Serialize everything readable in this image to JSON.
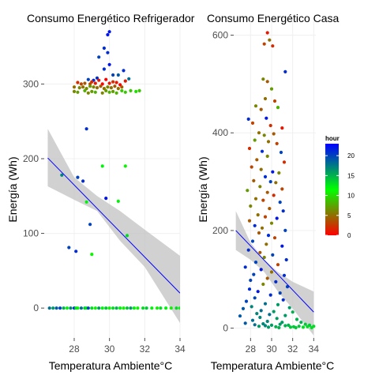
{
  "legend": {
    "title": "hour",
    "ticks": [
      0,
      5,
      10,
      15,
      20
    ],
    "range": [
      0,
      23
    ],
    "colors": [
      "#ff0000",
      "#00ff00",
      "#0000ff"
    ]
  },
  "colors": {
    "point_cold": "#ff0000",
    "point_mid": "#00ff00",
    "point_hot": "#0000ff",
    "trend_line": "#0000ff",
    "confidence_band": "#bdbdbd",
    "grid": "#f0f0f0"
  },
  "chart_data": [
    {
      "type": "scatter",
      "title": "Consumo Energético Refrigerador",
      "xlabel": "Temperatura Ambiente°C",
      "ylabel": "Energía (Wh)",
      "xlim": [
        26.3,
        34.0
      ],
      "ylim": [
        -40,
        385
      ],
      "xticks": [
        28,
        30,
        32,
        34
      ],
      "yticks": [
        0,
        100,
        200,
        300
      ],
      "color_by": "hour",
      "trend": {
        "method": "linear",
        "x": [
          26.5,
          34.0
        ],
        "y": [
          201,
          20
        ],
        "se_band": [
          [
            26.5,
            163,
            240
          ],
          [
            28.0,
            145,
            175
          ],
          [
            29.3,
            130,
            150
          ],
          [
            30.6,
            90,
            130
          ],
          [
            32.0,
            55,
            105
          ],
          [
            34.0,
            -20,
            70
          ]
        ]
      },
      "points": [
        [
          29.9,
          366,
          22
        ],
        [
          30.0,
          370,
          22
        ],
        [
          29.7,
          348,
          21
        ],
        [
          29.9,
          342,
          21
        ],
        [
          29.4,
          336,
          20
        ],
        [
          30.0,
          326,
          22
        ],
        [
          29.7,
          320,
          21
        ],
        [
          30.2,
          312,
          20
        ],
        [
          29.3,
          308,
          21
        ],
        [
          28.8,
          306,
          20
        ],
        [
          29.1,
          305,
          21
        ],
        [
          30.5,
          312,
          19
        ],
        [
          30.8,
          318,
          21
        ],
        [
          31.1,
          307,
          18
        ],
        [
          28.2,
          302,
          2
        ],
        [
          28.4,
          300,
          3
        ],
        [
          28.6,
          301,
          4
        ],
        [
          28.9,
          300,
          3
        ],
        [
          29.0,
          303,
          2
        ],
        [
          29.2,
          301,
          1
        ],
        [
          29.4,
          305,
          1
        ],
        [
          29.6,
          300,
          0
        ],
        [
          29.8,
          306,
          0
        ],
        [
          30.0,
          301,
          1
        ],
        [
          30.2,
          303,
          2
        ],
        [
          30.4,
          302,
          1
        ],
        [
          30.6,
          299,
          0
        ],
        [
          30.9,
          304,
          1
        ],
        [
          28.0,
          296,
          5
        ],
        [
          28.3,
          295,
          6
        ],
        [
          28.5,
          296,
          5
        ],
        [
          28.7,
          294,
          6
        ],
        [
          28.9,
          297,
          7
        ],
        [
          29.1,
          296,
          6
        ],
        [
          29.3,
          295,
          5
        ],
        [
          29.5,
          297,
          4
        ],
        [
          29.7,
          294,
          5
        ],
        [
          29.9,
          296,
          6
        ],
        [
          30.1,
          295,
          5
        ],
        [
          30.3,
          297,
          4
        ],
        [
          30.5,
          294,
          5
        ],
        [
          30.7,
          296,
          4
        ],
        [
          28.0,
          290,
          6
        ],
        [
          28.2,
          289,
          7
        ],
        [
          28.6,
          291,
          8
        ],
        [
          28.8,
          288,
          6
        ],
        [
          29.0,
          290,
          7
        ],
        [
          29.2,
          289,
          8
        ],
        [
          29.6,
          288,
          6
        ],
        [
          29.8,
          291,
          7
        ],
        [
          30.0,
          289,
          8
        ],
        [
          30.2,
          290,
          7
        ],
        [
          30.4,
          288,
          8
        ],
        [
          30.7,
          291,
          9
        ],
        [
          30.9,
          289,
          9
        ],
        [
          31.2,
          291,
          9
        ],
        [
          31.5,
          290,
          10
        ],
        [
          31.7,
          291,
          9
        ],
        [
          28.7,
          240,
          21
        ],
        [
          29.6,
          190,
          12
        ],
        [
          30.9,
          190,
          11
        ],
        [
          28.5,
          170,
          21
        ],
        [
          28.2,
          175,
          20
        ],
        [
          27.3,
          178,
          17
        ],
        [
          29.8,
          147,
          22
        ],
        [
          30.5,
          143,
          12
        ],
        [
          28.7,
          142,
          12
        ],
        [
          28.9,
          112,
          20
        ],
        [
          31.0,
          97,
          13
        ],
        [
          27.7,
          81,
          20
        ],
        [
          28.1,
          76,
          21
        ],
        [
          29.0,
          72,
          11
        ],
        [
          26.6,
          0,
          18
        ],
        [
          26.8,
          0,
          16
        ],
        [
          27.0,
          0,
          19
        ],
        [
          27.2,
          0,
          20
        ],
        [
          27.4,
          0,
          15
        ],
        [
          27.6,
          0,
          12
        ],
        [
          27.8,
          0,
          17
        ],
        [
          28.0,
          0,
          21
        ],
        [
          28.1,
          0,
          13
        ],
        [
          28.2,
          0,
          11
        ],
        [
          28.4,
          0,
          18
        ],
        [
          28.6,
          0,
          14
        ],
        [
          28.7,
          0,
          12
        ],
        [
          28.8,
          0,
          20
        ],
        [
          29.0,
          0,
          13
        ],
        [
          29.2,
          0,
          11
        ],
        [
          29.4,
          0,
          16
        ],
        [
          29.6,
          0,
          12
        ],
        [
          29.8,
          0,
          14
        ],
        [
          30.0,
          0,
          11
        ],
        [
          30.2,
          0,
          13
        ],
        [
          30.4,
          0,
          15
        ],
        [
          30.6,
          0,
          12
        ],
        [
          30.8,
          0,
          11
        ],
        [
          31.0,
          0,
          14
        ],
        [
          31.2,
          0,
          16
        ],
        [
          31.4,
          0,
          12
        ],
        [
          31.6,
          0,
          11
        ],
        [
          31.9,
          0,
          13
        ],
        [
          32.1,
          0,
          14
        ],
        [
          32.4,
          0,
          12
        ],
        [
          32.7,
          0,
          11
        ],
        [
          32.9,
          0,
          13
        ],
        [
          33.2,
          0,
          12
        ],
        [
          33.5,
          0,
          11
        ],
        [
          33.8,
          0,
          13
        ],
        [
          34.0,
          0,
          12
        ]
      ]
    },
    {
      "type": "scatter",
      "title": "Consumo Energético Casa",
      "xlabel": "Temperatura Ambiente°C",
      "ylabel": "Energía (Wh)",
      "xlim": [
        26.4,
        34.2
      ],
      "ylim": [
        -20,
        630
      ],
      "xticks": [
        28,
        30,
        32,
        34
      ],
      "yticks": [
        0,
        200,
        400,
        600
      ],
      "color_by": "hour",
      "trend": {
        "method": "linear",
        "x": [
          26.6,
          34.0
        ],
        "y": [
          200,
          33
        ],
        "se_band": [
          [
            26.6,
            160,
            240
          ],
          [
            28.0,
            140,
            175
          ],
          [
            29.3,
            115,
            140
          ],
          [
            30.6,
            75,
            115
          ],
          [
            32.0,
            40,
            95
          ],
          [
            34.0,
            -15,
            75
          ]
        ]
      },
      "points": [
        [
          29.6,
          605,
          1
        ],
        [
          29.3,
          582,
          3
        ],
        [
          29.8,
          590,
          5
        ],
        [
          30.1,
          578,
          2
        ],
        [
          31.3,
          525,
          21
        ],
        [
          29.2,
          510,
          6
        ],
        [
          29.6,
          505,
          4
        ],
        [
          30.0,
          490,
          7
        ],
        [
          29.4,
          470,
          5
        ],
        [
          30.3,
          465,
          3
        ],
        [
          28.5,
          455,
          6
        ],
        [
          29.0,
          448,
          4
        ],
        [
          30.6,
          452,
          8
        ],
        [
          27.8,
          428,
          21
        ],
        [
          29.5,
          430,
          22
        ],
        [
          28.2,
          420,
          3
        ],
        [
          29.9,
          415,
          2
        ],
        [
          31.0,
          410,
          1
        ],
        [
          28.8,
          400,
          5
        ],
        [
          29.3,
          395,
          6
        ],
        [
          30.2,
          398,
          4
        ],
        [
          28.4,
          385,
          7
        ],
        [
          29.7,
          382,
          5
        ],
        [
          30.5,
          378,
          3
        ],
        [
          27.9,
          368,
          2
        ],
        [
          29.1,
          362,
          21
        ],
        [
          30.9,
          360,
          20
        ],
        [
          29.6,
          352,
          6
        ],
        [
          28.6,
          345,
          4
        ],
        [
          31.2,
          340,
          2
        ],
        [
          28.1,
          330,
          3
        ],
        [
          29.0,
          325,
          5
        ],
        [
          30.1,
          320,
          22
        ],
        [
          30.7,
          318,
          6
        ],
        [
          29.4,
          310,
          21
        ],
        [
          28.3,
          302,
          4
        ],
        [
          29.9,
          300,
          20
        ],
        [
          30.4,
          298,
          5
        ],
        [
          28.9,
          290,
          6
        ],
        [
          31.0,
          285,
          3
        ],
        [
          27.7,
          282,
          7
        ],
        [
          29.6,
          278,
          4
        ],
        [
          30.2,
          272,
          2
        ],
        [
          28.5,
          265,
          5
        ],
        [
          29.2,
          262,
          3
        ],
        [
          30.8,
          258,
          20
        ],
        [
          28.0,
          250,
          6
        ],
        [
          29.8,
          245,
          4
        ],
        [
          31.1,
          240,
          21
        ],
        [
          28.7,
          232,
          5
        ],
        [
          29.4,
          228,
          3
        ],
        [
          30.5,
          225,
          22
        ],
        [
          27.9,
          220,
          4
        ],
        [
          30.0,
          215,
          6
        ],
        [
          28.4,
          210,
          21
        ],
        [
          29.1,
          205,
          5
        ],
        [
          31.3,
          200,
          20
        ],
        [
          28.8,
          195,
          4
        ],
        [
          29.7,
          190,
          21
        ],
        [
          30.3,
          185,
          3
        ],
        [
          28.2,
          178,
          20
        ],
        [
          29.5,
          172,
          5
        ],
        [
          31.0,
          168,
          22
        ],
        [
          27.8,
          160,
          21
        ],
        [
          28.9,
          155,
          4
        ],
        [
          30.1,
          150,
          20
        ],
        [
          29.3,
          145,
          6
        ],
        [
          31.4,
          140,
          21
        ],
        [
          28.5,
          135,
          20
        ],
        [
          30.6,
          130,
          3
        ],
        [
          27.5,
          125,
          21
        ],
        [
          29.0,
          120,
          22
        ],
        [
          30.0,
          115,
          5
        ],
        [
          28.3,
          110,
          20
        ],
        [
          31.2,
          108,
          21
        ],
        [
          29.6,
          102,
          4
        ],
        [
          28.0,
          98,
          20
        ],
        [
          30.4,
          95,
          21
        ],
        [
          29.2,
          90,
          6
        ],
        [
          31.5,
          85,
          20
        ],
        [
          27.9,
          80,
          21
        ],
        [
          28.7,
          75,
          22
        ],
        [
          30.8,
          72,
          20
        ],
        [
          29.9,
          68,
          21
        ],
        [
          28.4,
          62,
          20
        ],
        [
          31.1,
          58,
          21
        ],
        [
          27.6,
          55,
          20
        ],
        [
          29.4,
          50,
          18
        ],
        [
          30.6,
          48,
          16
        ],
        [
          28.1,
          44,
          17
        ],
        [
          31.7,
          42,
          16
        ],
        [
          27.3,
          40,
          19
        ],
        [
          29.0,
          36,
          18
        ],
        [
          30.2,
          34,
          16
        ],
        [
          32.0,
          33,
          15
        ],
        [
          28.6,
          30,
          17
        ],
        [
          29.8,
          28,
          18
        ],
        [
          31.3,
          26,
          16
        ],
        [
          27.0,
          25,
          19
        ],
        [
          28.9,
          22,
          17
        ],
        [
          30.5,
          20,
          16
        ],
        [
          32.4,
          18,
          15
        ],
        [
          28.2,
          16,
          18
        ],
        [
          29.6,
          14,
          17
        ],
        [
          31.0,
          12,
          16
        ],
        [
          32.8,
          12,
          15
        ],
        [
          27.5,
          10,
          19
        ],
        [
          29.2,
          9,
          17
        ],
        [
          30.8,
          8,
          16
        ],
        [
          33.2,
          8,
          14
        ],
        [
          28.4,
          7,
          18
        ],
        [
          30.0,
          6,
          16
        ],
        [
          31.6,
          6,
          15
        ],
        [
          33.6,
          6,
          14
        ],
        [
          29.4,
          5,
          17
        ],
        [
          31.3,
          5,
          15
        ],
        [
          32.6,
          4,
          14
        ],
        [
          34.0,
          4,
          13
        ],
        [
          28.8,
          4,
          16
        ],
        [
          30.4,
          3,
          15
        ],
        [
          32.1,
          3,
          14
        ],
        [
          33.4,
          3,
          13
        ],
        [
          29.7,
          2,
          16
        ],
        [
          31.8,
          2,
          14
        ],
        [
          33.0,
          2,
          13
        ],
        [
          30.7,
          1,
          15
        ],
        [
          32.3,
          1,
          14
        ],
        [
          33.8,
          1,
          13
        ]
      ]
    }
  ]
}
